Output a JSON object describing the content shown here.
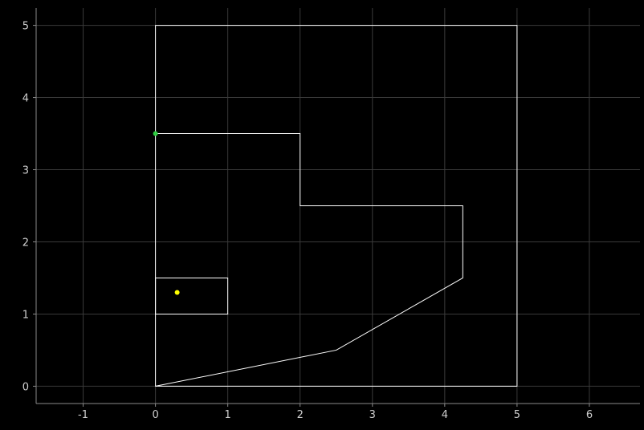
{
  "chart_data": {
    "type": "line",
    "title": "",
    "xlabel": "",
    "ylabel": "",
    "xlim": [
      -1.65,
      6.7
    ],
    "ylim": [
      -0.24,
      5.24
    ],
    "grid": true,
    "x_ticks": [
      -1,
      0,
      1,
      2,
      3,
      4,
      5,
      6
    ],
    "y_ticks": [
      0,
      1,
      2,
      3,
      4,
      5
    ],
    "x_tick_labels": [
      "-1",
      "0",
      "1",
      "2",
      "3",
      "4",
      "5",
      "6"
    ],
    "y_tick_labels": [
      "0",
      "1",
      "2",
      "3",
      "4",
      "5"
    ],
    "series": [
      {
        "id": "outer-boundary",
        "color": "#ffffff",
        "closed": true,
        "points": [
          [
            0,
            0
          ],
          [
            5,
            0
          ],
          [
            5,
            5
          ],
          [
            0,
            5
          ]
        ]
      },
      {
        "id": "inner-polyline",
        "color": "#ffffff",
        "closed": false,
        "points": [
          [
            0,
            0
          ],
          [
            2.5,
            0.5
          ],
          [
            4.25,
            1.5
          ],
          [
            4.25,
            2.5
          ],
          [
            2,
            2.5
          ],
          [
            2,
            3.5
          ],
          [
            0,
            3.5
          ]
        ]
      },
      {
        "id": "small-rectangle",
        "color": "#ffffff",
        "closed": true,
        "points": [
          [
            0,
            1
          ],
          [
            1,
            1
          ],
          [
            1,
            1.5
          ],
          [
            0,
            1.5
          ]
        ]
      }
    ],
    "markers": [
      {
        "id": "green-point",
        "x": 0,
        "y": 3.5,
        "color": "#2ecc40"
      },
      {
        "id": "yellow-point",
        "x": 0.3,
        "y": 1.3,
        "color": "#ffff00"
      }
    ],
    "colors": {
      "background": "#000000",
      "grid": "#3a3a3a",
      "axis": "#8a8a8a",
      "tick_text": "#cfcfcf"
    }
  }
}
